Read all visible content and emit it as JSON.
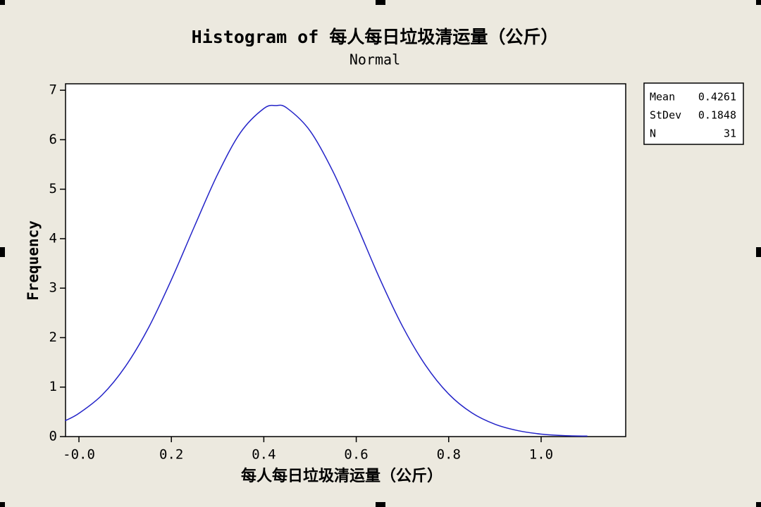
{
  "chart_data": {
    "type": "line",
    "title": "Histogram of 每人每日垃圾清运量（公斤）",
    "subtitle": "Normal",
    "x_label": "每人每日垃圾清运量（公斤）",
    "y_label": "Frequency",
    "x": [
      -0.03,
      0,
      0.05,
      0.1,
      0.15,
      0.2,
      0.25,
      0.3,
      0.35,
      0.4,
      0.4261,
      0.45,
      0.5,
      0.55,
      0.6,
      0.65,
      0.7,
      0.75,
      0.8,
      0.85,
      0.9,
      0.95,
      1.0,
      1.05,
      1.1
    ],
    "series": [
      {
        "name": "Normal",
        "color": "#2323c8",
        "values": [
          0.32,
          0.47,
          0.84,
          1.41,
          2.19,
          3.17,
          4.25,
          5.3,
          6.15,
          6.63,
          6.69,
          6.64,
          6.18,
          5.35,
          4.3,
          3.21,
          2.23,
          1.44,
          0.86,
          0.48,
          0.25,
          0.12,
          0.05,
          0.02,
          0.01
        ]
      }
    ],
    "xlim": [
      -0.029,
      1.183
    ],
    "ylim": [
      0,
      7.13
    ],
    "xticks": [
      {
        "value": 0,
        "label": "-0.0"
      },
      0.2,
      0.4,
      0.6,
      0.8,
      {
        "value": 1,
        "label": "1.0"
      }
    ],
    "yticks": [
      0,
      1,
      2,
      3,
      4,
      5,
      6,
      7
    ],
    "stats": [
      {
        "label": "Mean",
        "value": 0.4261
      },
      {
        "label": "StDev",
        "value": 0.1848
      },
      {
        "label": "N",
        "value": 31
      }
    ]
  }
}
